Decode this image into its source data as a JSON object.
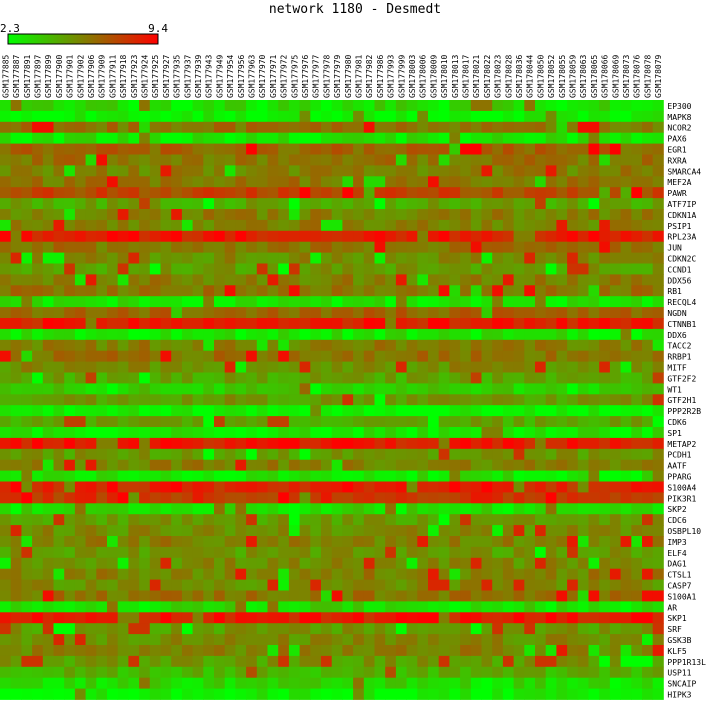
{
  "colors": {
    "low": "#00ff00",
    "mid": "#808000",
    "high": "#ff0000"
  },
  "chart_data": {
    "type": "heatmap",
    "title": "network 1180 - Desmedt",
    "colorscale": {
      "min": 2.3,
      "max": 9.4,
      "min_label": "2.3",
      "max_label": "9.4"
    },
    "columns": [
      "GSM177885",
      "GSM177887",
      "GSM177891",
      "GSM177897",
      "GSM177899",
      "GSM177900",
      "GSM177901",
      "GSM177902",
      "GSM177906",
      "GSM177909",
      "GSM177911",
      "GSM177918",
      "GSM177923",
      "GSM177924",
      "GSM177925",
      "GSM177927",
      "GSM177935",
      "GSM177937",
      "GSM177939",
      "GSM177943",
      "GSM177949",
      "GSM177954",
      "GSM177956",
      "GSM177963",
      "GSM177970",
      "GSM177971",
      "GSM177972",
      "GSM177975",
      "GSM177976",
      "GSM177977",
      "GSM177978",
      "GSM177979",
      "GSM177980",
      "GSM177981",
      "GSM177982",
      "GSM177986",
      "GSM177993",
      "GSM177999",
      "GSM178003",
      "GSM178006",
      "GSM178009",
      "GSM178010",
      "GSM178013",
      "GSM178017",
      "GSM178021",
      "GSM178022",
      "GSM178023",
      "GSM178028",
      "GSM178036",
      "GSM178044",
      "GSM178050",
      "GSM178052",
      "GSM178055",
      "GSM178059",
      "GSM178063",
      "GSM178065",
      "GSM178066",
      "GSM178069",
      "GSM178073",
      "GSM178076",
      "GSM178078",
      "GSM178079"
    ],
    "rows": [
      "EP300",
      "MAPK8",
      "NCOR2",
      "PAX6",
      "EGR1",
      "RXRA",
      "SMARCA4",
      "MEF2A",
      "PAWR",
      "ATF7IP",
      "CDKN1A",
      "PSIP1",
      "RPL23A",
      "JUN",
      "CDKN2C",
      "CCND1",
      "DDX56",
      "RB1",
      "RECQL4",
      "NGDN",
      "CTNNB1",
      "DDX6",
      "TACC2",
      "RRBP1",
      "MITF",
      "GTF2F2",
      "WT1",
      "GTF2H1",
      "PPP2R2B",
      "CDK6",
      "SP1",
      "METAP2",
      "PCDH1",
      "AATF",
      "PPARG",
      "S100A4",
      "PIK3R1",
      "SKP2",
      "CDC6",
      "OSBPL10",
      "IMP3",
      "ELF4",
      "DAG1",
      "CTSL1",
      "CASP7",
      "S100A1",
      "AR",
      "SKP1",
      "SRF",
      "GSK3B",
      "KLF5",
      "PPP1R13L",
      "USP11",
      "SNCAIP",
      "HIPK3"
    ],
    "row_levels": [
      0.15,
      0.05,
      0.55,
      0.1,
      0.6,
      0.55,
      0.5,
      0.55,
      0.72,
      0.35,
      0.5,
      0.5,
      0.9,
      0.55,
      0.45,
      0.4,
      0.5,
      0.55,
      0.1,
      0.6,
      0.9,
      0.1,
      0.5,
      0.55,
      0.45,
      0.35,
      0.2,
      0.4,
      0.05,
      0.35,
      0.1,
      0.9,
      0.4,
      0.5,
      0.1,
      0.85,
      0.8,
      0.15,
      0.4,
      0.45,
      0.5,
      0.4,
      0.45,
      0.5,
      0.45,
      0.55,
      0.15,
      0.9,
      0.4,
      0.45,
      0.5,
      0.4,
      0.3,
      0.15,
      0.05
    ],
    "xlabel": "",
    "ylabel": ""
  }
}
